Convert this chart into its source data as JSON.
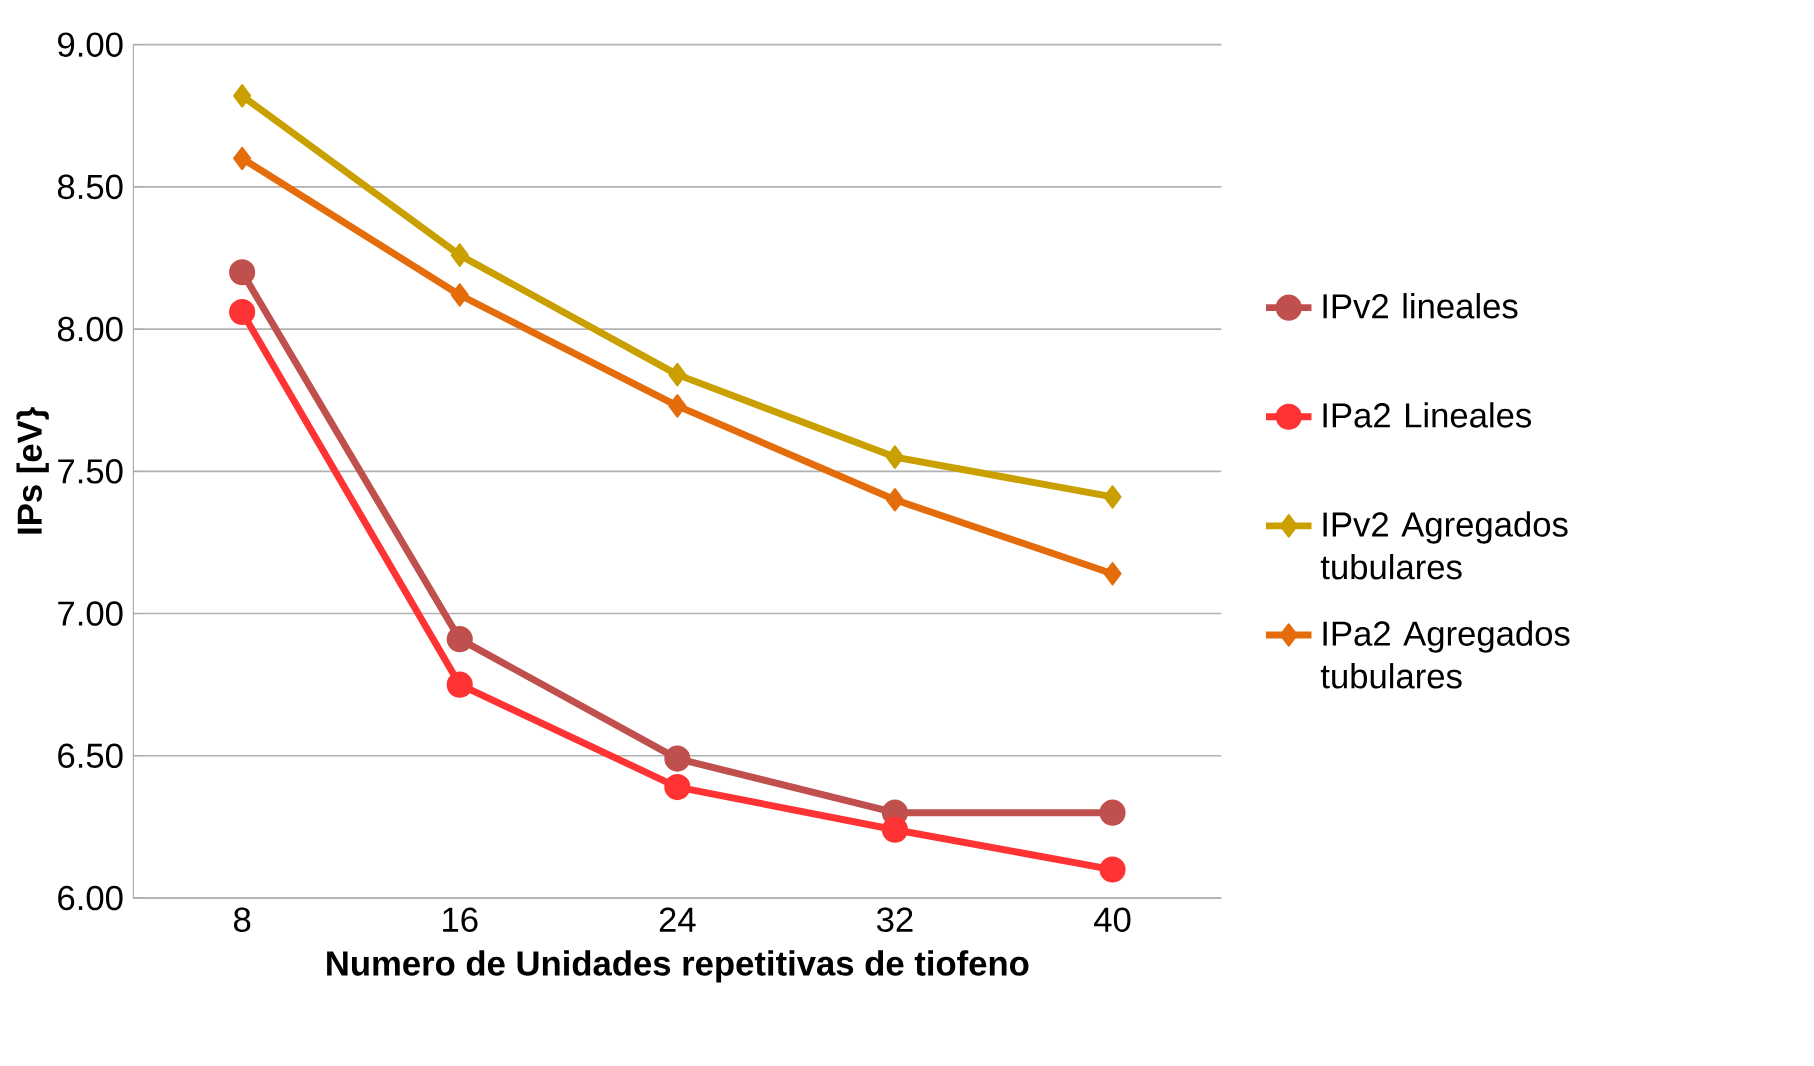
{
  "chart_data": {
    "type": "line",
    "xlabel": "Numero de Unidades repetitivas de tiofeno",
    "ylabel": "IPs [eV}",
    "categories": [
      "8",
      "16",
      "24",
      "32",
      "40"
    ],
    "ylim": [
      6.0,
      9.0
    ],
    "yticks": [
      {
        "value": 6.0,
        "label": "6.00"
      },
      {
        "value": 6.5,
        "label": "6.50"
      },
      {
        "value": 7.0,
        "label": "7.00"
      },
      {
        "value": 7.5,
        "label": "7.50"
      },
      {
        "value": 8.0,
        "label": "8.00"
      },
      {
        "value": 8.5,
        "label": "8.50"
      },
      {
        "value": 9.0,
        "label": "9.00"
      }
    ],
    "grid": "y",
    "legend": "right",
    "series": [
      {
        "name": "IPv2 lineales",
        "color": "#c0504d",
        "marker": "circle",
        "values": [
          8.2,
          6.91,
          6.49,
          6.3,
          6.3
        ]
      },
      {
        "name": "IPa2 Lineales",
        "color": "#ff3333",
        "marker": "circle",
        "values": [
          8.06,
          6.75,
          6.39,
          6.24,
          6.1
        ]
      },
      {
        "name": "IPv2 Agregados tubulares",
        "color": "#c9a000",
        "marker": "diamond",
        "values": [
          8.82,
          8.26,
          7.84,
          7.55,
          7.41
        ]
      },
      {
        "name": "IPa2 Agregados tubulares",
        "color": "#e46c0a",
        "marker": "diamond",
        "values": [
          8.6,
          8.12,
          7.73,
          7.4,
          7.14
        ]
      }
    ]
  }
}
